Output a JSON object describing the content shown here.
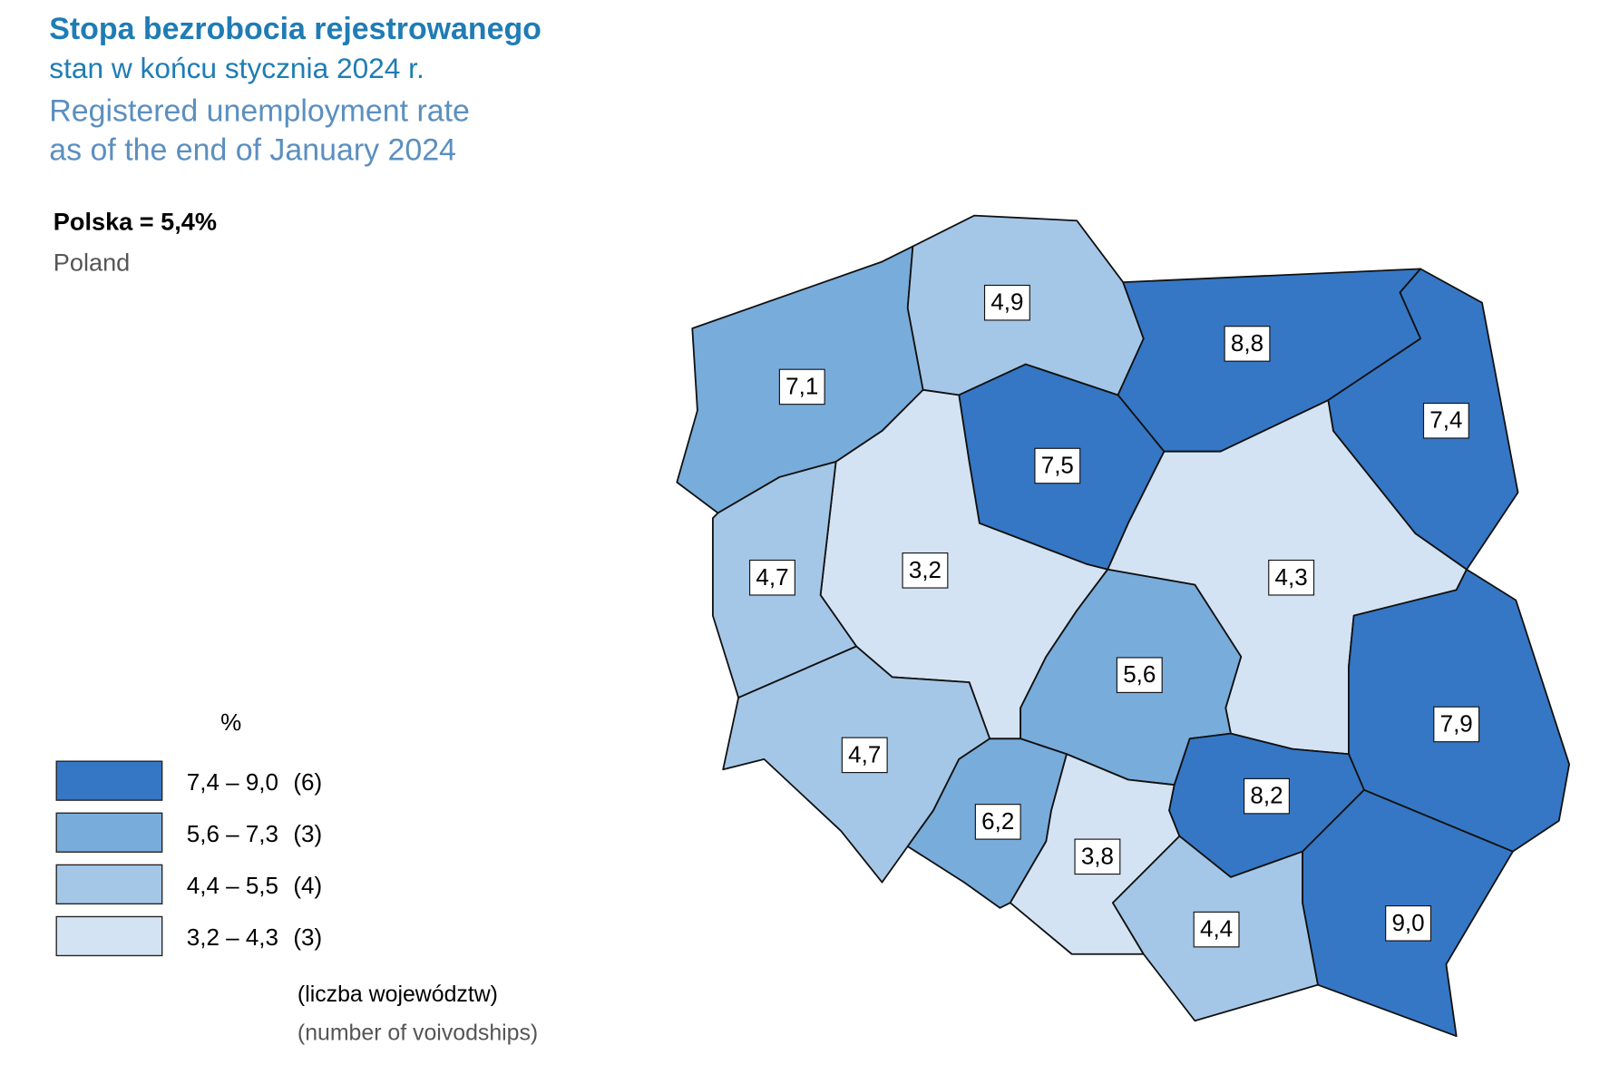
{
  "title": "Stopa bezrobocia rejestrowanego",
  "subtitle": "stan w końcu stycznia 2024 r.",
  "title_en": [
    "Registered unemployment rate",
    "as of the end of January 2024"
  ],
  "national": {
    "label": "Polska = 5,4%",
    "label_en": "Poland"
  },
  "legend": {
    "unit": "%",
    "classes": [
      {
        "min": 7.4,
        "max": 9.0,
        "label": "7,4 – 9,0",
        "count": "(6)",
        "color": "#3577c4"
      },
      {
        "min": 5.6,
        "max": 7.3,
        "label": "5,6 – 7,3",
        "count": "(3)",
        "color": "#78acdb"
      },
      {
        "min": 4.4,
        "max": 5.5,
        "label": "4,4 – 5,5",
        "count": "(4)",
        "color": "#a5c7e7"
      },
      {
        "min": 3.2,
        "max": 4.3,
        "label": "3,2 – 4,3",
        "count": "(3)",
        "color": "#d3e3f3"
      }
    ],
    "note": "(liczba województw)",
    "note_en": "(number of voivodships)"
  },
  "regions": [
    {
      "value": 7.1,
      "label": "7,1"
    },
    {
      "value": 4.9,
      "label": "4,9"
    },
    {
      "value": 8.8,
      "label": "8,8"
    },
    {
      "value": 7.4,
      "label": "7,4"
    },
    {
      "value": 7.5,
      "label": "7,5"
    },
    {
      "value": 3.2,
      "label": "3,2"
    },
    {
      "value": 4.7,
      "label": "4,7"
    },
    {
      "value": 4.3,
      "label": "4,3"
    },
    {
      "value": 5.6,
      "label": "5,6"
    },
    {
      "value": 7.9,
      "label": "7,9"
    },
    {
      "value": 4.7,
      "label": "4,7"
    },
    {
      "value": 6.2,
      "label": "6,2"
    },
    {
      "value": 3.8,
      "label": "3,8"
    },
    {
      "value": 8.2,
      "label": "8,2"
    },
    {
      "value": 4.4,
      "label": "4,4"
    },
    {
      "value": 9.0,
      "label": "9,0"
    }
  ]
}
